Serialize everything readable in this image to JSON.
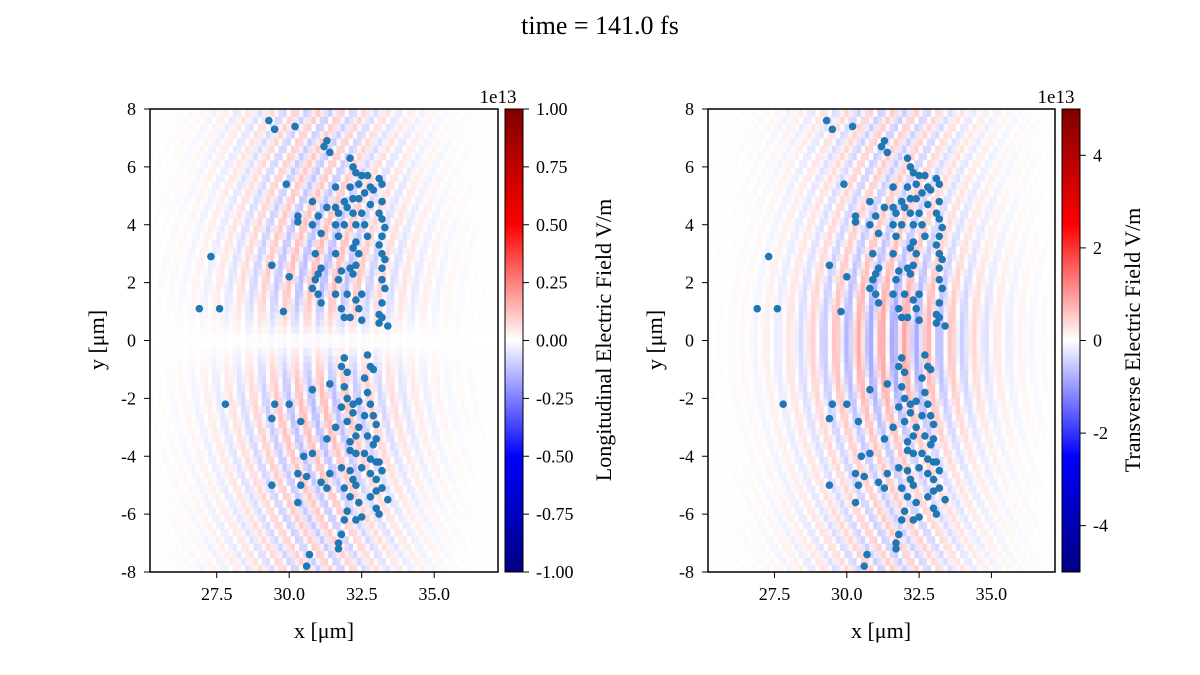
{
  "figure": {
    "title": "time = 141.0 fs"
  },
  "chart_data": [
    {
      "type": "heatmap",
      "title": "",
      "xlabel": "x [μm]",
      "ylabel": "y [μm]",
      "xlim": [
        25.2,
        37.2
      ],
      "ylim": [
        -8,
        8
      ],
      "xticks": [
        "27.5",
        "30.0",
        "32.5",
        "35.0"
      ],
      "yticks": [
        "8",
        "6",
        "4",
        "2",
        "0",
        "-2",
        "-4",
        "-6",
        "-8"
      ],
      "colorbar": {
        "label": "Longitudinal Electric Field V/m",
        "multiplier": "1e13",
        "range": [
          -1.0,
          1.0
        ],
        "ticks": [
          "1.00",
          "0.75",
          "0.50",
          "0.25",
          "0.00",
          "-0.25",
          "-0.50",
          "-0.75",
          "-1.00"
        ],
        "colormap": "seismic"
      },
      "field": {
        "pattern": "longitudinal",
        "fringe_wavelength_um": 0.8,
        "center_um": [
          31.0,
          0
        ],
        "peak_fraction": 0.15
      },
      "particle_color": "#1f77b4"
    },
    {
      "type": "heatmap",
      "title": "",
      "xlabel": "x [μm]",
      "ylabel": "y [μm]",
      "xlim": [
        25.2,
        37.2
      ],
      "ylim": [
        -8,
        8
      ],
      "xticks": [
        "27.5",
        "30.0",
        "32.5",
        "35.0"
      ],
      "yticks": [
        "8",
        "6",
        "4",
        "2",
        "0",
        "-2",
        "-4",
        "-6",
        "-8"
      ],
      "colorbar": {
        "label": "Transverse Electric Field V/m",
        "multiplier": "1e13",
        "range": [
          -5,
          5
        ],
        "ticks": [
          "4",
          "2",
          "0",
          "-2",
          "-4"
        ],
        "colormap": "seismic"
      },
      "field": {
        "pattern": "transverse",
        "fringe_wavelength_um": 0.8,
        "center_um": [
          31.5,
          0
        ],
        "peak_fraction": 0.18
      },
      "particle_color": "#1f77b4"
    }
  ],
  "particles": [
    [
      29.3,
      7.6
    ],
    [
      29.5,
      7.3
    ],
    [
      30.2,
      7.4
    ],
    [
      31.3,
      6.9
    ],
    [
      31.2,
      6.7
    ],
    [
      31.4,
      6.5
    ],
    [
      32.1,
      6.3
    ],
    [
      32.2,
      6.0
    ],
    [
      32.3,
      5.8
    ],
    [
      32.5,
      5.7
    ],
    [
      32.7,
      5.7
    ],
    [
      33.1,
      5.6
    ],
    [
      33.2,
      5.4
    ],
    [
      29.9,
      5.4
    ],
    [
      32.4,
      5.4
    ],
    [
      31.6,
      5.3
    ],
    [
      32.1,
      5.3
    ],
    [
      32.8,
      5.3
    ],
    [
      31.3,
      4.6
    ],
    [
      31.6,
      4.6
    ],
    [
      31.9,
      4.8
    ],
    [
      32.2,
      4.9
    ],
    [
      32.4,
      4.9
    ],
    [
      32.6,
      5.1
    ],
    [
      32.9,
      5.2
    ],
    [
      33.2,
      4.8
    ],
    [
      32.8,
      4.7
    ],
    [
      32.0,
      4.6
    ],
    [
      30.8,
      4.8
    ],
    [
      31.0,
      4.3
    ],
    [
      31.7,
      4.4
    ],
    [
      32.2,
      4.4
    ],
    [
      32.5,
      4.4
    ],
    [
      33.2,
      4.2
    ],
    [
      33.1,
      4.4
    ],
    [
      30.3,
      4.3
    ],
    [
      30.3,
      4.1
    ],
    [
      30.8,
      4.0
    ],
    [
      31.6,
      4.0
    ],
    [
      31.9,
      4.0
    ],
    [
      32.3,
      4.0
    ],
    [
      32.6,
      4.0
    ],
    [
      33.3,
      3.9
    ],
    [
      31.1,
      3.7
    ],
    [
      31.7,
      3.6
    ],
    [
      32.3,
      3.4
    ],
    [
      32.7,
      3.6
    ],
    [
      33.2,
      3.6
    ],
    [
      33.1,
      3.3
    ],
    [
      30.9,
      3.0
    ],
    [
      31.6,
      3.0
    ],
    [
      32.2,
      3.2
    ],
    [
      32.4,
      3.0
    ],
    [
      33.2,
      3.0
    ],
    [
      33.3,
      2.8
    ],
    [
      29.4,
      2.6
    ],
    [
      31.1,
      2.5
    ],
    [
      31.0,
      2.3
    ],
    [
      31.8,
      2.4
    ],
    [
      32.1,
      2.5
    ],
    [
      32.3,
      2.6
    ],
    [
      33.2,
      2.5
    ],
    [
      30.0,
      2.2
    ],
    [
      30.9,
      2.1
    ],
    [
      31.7,
      2.1
    ],
    [
      32.2,
      2.3
    ],
    [
      33.2,
      2.1
    ],
    [
      30.8,
      1.8
    ],
    [
      31.0,
      1.6
    ],
    [
      31.6,
      1.6
    ],
    [
      32.0,
      1.6
    ],
    [
      32.3,
      1.4
    ],
    [
      32.5,
      1.6
    ],
    [
      33.3,
      1.8
    ],
    [
      33.2,
      1.3
    ],
    [
      27.3,
      2.9
    ],
    [
      26.9,
      1.1
    ],
    [
      27.6,
      1.1
    ],
    [
      29.8,
      1.0
    ],
    [
      31.1,
      1.3
    ],
    [
      31.8,
      1.1
    ],
    [
      31.9,
      0.8
    ],
    [
      32.1,
      0.8
    ],
    [
      32.4,
      1.1
    ],
    [
      32.5,
      0.7
    ],
    [
      33.2,
      0.8
    ],
    [
      33.1,
      0.6
    ],
    [
      33.4,
      0.5
    ],
    [
      33.1,
      0.9
    ],
    [
      31.9,
      -0.6
    ],
    [
      31.8,
      -0.9
    ],
    [
      32.0,
      -1.1
    ],
    [
      32.7,
      -0.5
    ],
    [
      32.8,
      -0.9
    ],
    [
      32.6,
      -1.3
    ],
    [
      32.9,
      -1.0
    ],
    [
      31.4,
      -1.5
    ],
    [
      30.8,
      -1.7
    ],
    [
      30.0,
      -2.2
    ],
    [
      29.5,
      -2.2
    ],
    [
      27.8,
      -2.2
    ],
    [
      29.4,
      -2.7
    ],
    [
      30.4,
      -2.8
    ],
    [
      31.9,
      -1.6
    ],
    [
      32.0,
      -2.0
    ],
    [
      31.8,
      -2.3
    ],
    [
      32.2,
      -2.2
    ],
    [
      32.2,
      -2.5
    ],
    [
      32.4,
      -2.1
    ],
    [
      32.7,
      -1.8
    ],
    [
      32.8,
      -2.2
    ],
    [
      32.6,
      -2.6
    ],
    [
      32.9,
      -2.6
    ],
    [
      33.0,
      -2.9
    ],
    [
      32.0,
      -2.8
    ],
    [
      31.6,
      -3.0
    ],
    [
      31.3,
      -3.4
    ],
    [
      32.1,
      -3.5
    ],
    [
      32.3,
      -3.3
    ],
    [
      32.4,
      -3.0
    ],
    [
      32.7,
      -3.3
    ],
    [
      32.9,
      -3.6
    ],
    [
      33.0,
      -3.4
    ],
    [
      32.1,
      -3.8
    ],
    [
      32.3,
      -3.9
    ],
    [
      32.6,
      -3.9
    ],
    [
      32.8,
      -4.1
    ],
    [
      33.0,
      -4.2
    ],
    [
      30.5,
      -4.0
    ],
    [
      30.8,
      -3.9
    ],
    [
      30.3,
      -4.6
    ],
    [
      30.6,
      -4.7
    ],
    [
      31.1,
      -4.9
    ],
    [
      31.4,
      -4.6
    ],
    [
      31.8,
      -4.4
    ],
    [
      32.1,
      -4.5
    ],
    [
      32.2,
      -4.8
    ],
    [
      32.5,
      -4.4
    ],
    [
      32.8,
      -4.6
    ],
    [
      33.0,
      -4.8
    ],
    [
      33.2,
      -4.5
    ],
    [
      33.1,
      -4.2
    ],
    [
      29.4,
      -5.0
    ],
    [
      30.4,
      -5.0
    ],
    [
      30.3,
      -5.6
    ],
    [
      31.3,
      -5.1
    ],
    [
      31.9,
      -5.1
    ],
    [
      32.1,
      -5.4
    ],
    [
      32.3,
      -5.0
    ],
    [
      32.0,
      -5.9
    ],
    [
      32.4,
      -5.6
    ],
    [
      32.8,
      -5.4
    ],
    [
      33.0,
      -5.2
    ],
    [
      33.2,
      -5.1
    ],
    [
      33.0,
      -5.8
    ],
    [
      33.1,
      -6.0
    ],
    [
      32.5,
      -6.1
    ],
    [
      32.3,
      -6.2
    ],
    [
      31.9,
      -6.2
    ],
    [
      31.8,
      -6.7
    ],
    [
      31.7,
      -7.0
    ],
    [
      31.7,
      -7.2
    ],
    [
      30.7,
      -7.4
    ],
    [
      30.6,
      -7.8
    ],
    [
      33.4,
      -5.5
    ]
  ]
}
